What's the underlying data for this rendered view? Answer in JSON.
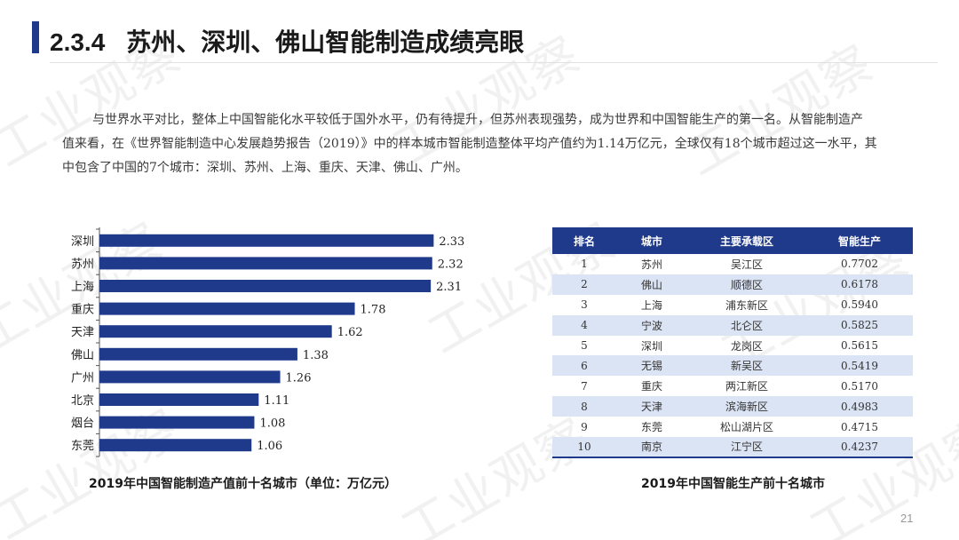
{
  "header": {
    "section_number": "2.3.4",
    "title": "苏州、深圳、佛山智能制造成绩亮眼"
  },
  "paragraph": {
    "lines": [
      "与世界水平对比，整体上中国智能化水平较低于国外水平，仍有待提升，但苏州表现强势，成为世界和中国智能生产的第一名。从智能制造产",
      "值来看，在《世界智能制造中心发展趋势报告（2019）》中的样本城市智能制造整体平均产值约为1.14万亿元，全球仅有18个城市超过这一水平，其",
      "中包含了中国的7个城市：深圳、苏州、上海、重庆、天津、佛山、广州。"
    ]
  },
  "chart_data": {
    "type": "bar",
    "orientation": "horizontal",
    "title": "2019年中国智能制造产值前十名城市（单位：万亿元）",
    "categories": [
      "深圳",
      "苏州",
      "上海",
      "重庆",
      "天津",
      "佛山",
      "广州",
      "北京",
      "烟台",
      "东莞"
    ],
    "values": [
      2.33,
      2.32,
      2.31,
      1.78,
      1.62,
      1.38,
      1.26,
      1.11,
      1.08,
      1.06
    ],
    "data_labels": [
      "2.33",
      "2.32",
      "2.31",
      "1.78",
      "1.62",
      "1.38",
      "1.26",
      "1.11",
      "1.08",
      "1.06"
    ],
    "xlim": [
      0,
      2.6
    ],
    "grid": false,
    "bar_color": "#1f3a8a"
  },
  "table": {
    "caption": "2019年中国智能生产前十名城市",
    "headers": [
      "排名",
      "城市",
      "主要承载区",
      "智能生产"
    ],
    "rows": [
      [
        "1",
        "苏州",
        "吴江区",
        "0.7702"
      ],
      [
        "2",
        "佛山",
        "顺德区",
        "0.6178"
      ],
      [
        "3",
        "上海",
        "浦东新区",
        "0.5940"
      ],
      [
        "4",
        "宁波",
        "北仑区",
        "0.5825"
      ],
      [
        "5",
        "深圳",
        "龙岗区",
        "0.5615"
      ],
      [
        "6",
        "无锡",
        "新吴区",
        "0.5419"
      ],
      [
        "7",
        "重庆",
        "两江新区",
        "0.5170"
      ],
      [
        "8",
        "天津",
        "滨海新区",
        "0.4983"
      ],
      [
        "9",
        "东莞",
        "松山湖片区",
        "0.4715"
      ],
      [
        "10",
        "南京",
        "江宁区",
        "0.4237"
      ]
    ],
    "header_color": "#1f3a8a",
    "stripe_color": "#dbe4f4"
  },
  "watermark": "工业观察",
  "page_number": "21"
}
